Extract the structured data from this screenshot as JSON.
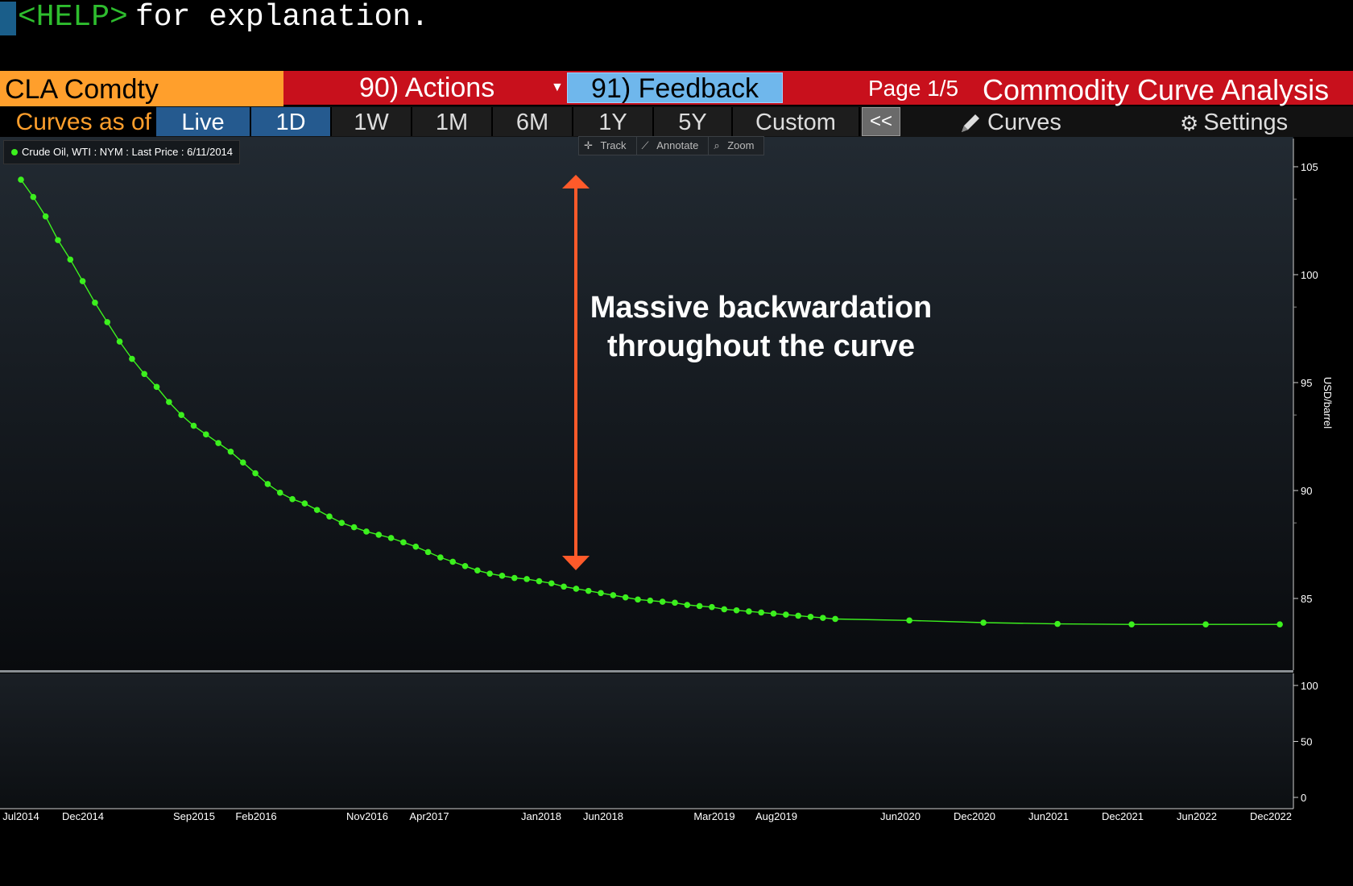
{
  "command_line": {
    "help_key": "<HELP>",
    "rest": " for explanation."
  },
  "header": {
    "ticker": "CLA Comdty",
    "actions_label": "90) Actions",
    "feedback_label": "91) Feedback",
    "page_indicator": "Page 1/5",
    "title": "Commodity Curve Analysis"
  },
  "tabs": {
    "curves_as_of": "Curves as of",
    "items": [
      "Live",
      "1D",
      "1W",
      "1M",
      "6M",
      "1Y",
      "5Y",
      "Custom"
    ],
    "active": [
      "Live",
      "1D"
    ],
    "collapse_label": "<<",
    "curves_label": "Curves",
    "settings_label": "Settings"
  },
  "toolbar": {
    "track": "Track",
    "annotate": "Annotate",
    "zoom": "Zoom"
  },
  "legend": {
    "label": "Crude Oil, WTI : NYM : Last Price : 6/11/2014",
    "color": "#3cf01e"
  },
  "annotation": {
    "line1": "Massive backwardation",
    "line2": "throughout the curve",
    "arrow_color": "#ff5a2a"
  },
  "chart_data": {
    "type": "line",
    "title": "",
    "ylabel": "USD/barrel",
    "ylim": [
      81.8,
      106.5
    ],
    "y_ticks": [
      85,
      90,
      95,
      100,
      105
    ],
    "series": [
      {
        "name": "Crude Oil, WTI : NYM : Last Price : 6/11/2014",
        "color": "#3cf01e",
        "values": [
          104.4,
          103.6,
          102.7,
          101.6,
          100.7,
          99.7,
          98.7,
          97.8,
          96.9,
          96.1,
          95.4,
          94.8,
          94.1,
          93.5,
          93.0,
          92.6,
          92.2,
          91.8,
          91.3,
          90.8,
          90.3,
          89.9,
          89.6,
          89.4,
          89.1,
          88.8,
          88.5,
          88.3,
          88.1,
          87.95,
          87.8,
          87.6,
          87.4,
          87.15,
          86.9,
          86.7,
          86.5,
          86.3,
          86.15,
          86.05,
          85.95,
          85.9,
          85.8,
          85.7,
          85.55,
          85.45,
          85.35,
          85.25,
          85.15,
          85.05,
          84.95,
          84.9,
          84.85,
          84.8,
          84.7,
          84.65,
          84.6,
          84.5,
          84.45,
          84.4,
          84.35,
          84.3,
          84.25,
          84.2,
          84.15,
          84.1,
          84.05,
          83.98,
          83.88,
          83.82,
          83.8,
          83.8,
          83.8
        ]
      }
    ],
    "x_tick_labels": [
      "Jul2014",
      "Dec2014",
      "Sep2015",
      "Feb2016",
      "Nov2016",
      "Apr2017",
      "Jan2018",
      "Jun2018",
      "Mar2019",
      "Aug2019",
      "Jun2020",
      "Dec2020",
      "Jun2021",
      "Dec2021",
      "Jun2022",
      "Dec2022"
    ],
    "subpanel": {
      "ylim": [
        0,
        110
      ],
      "y_ticks": [
        0,
        50,
        100
      ]
    }
  }
}
